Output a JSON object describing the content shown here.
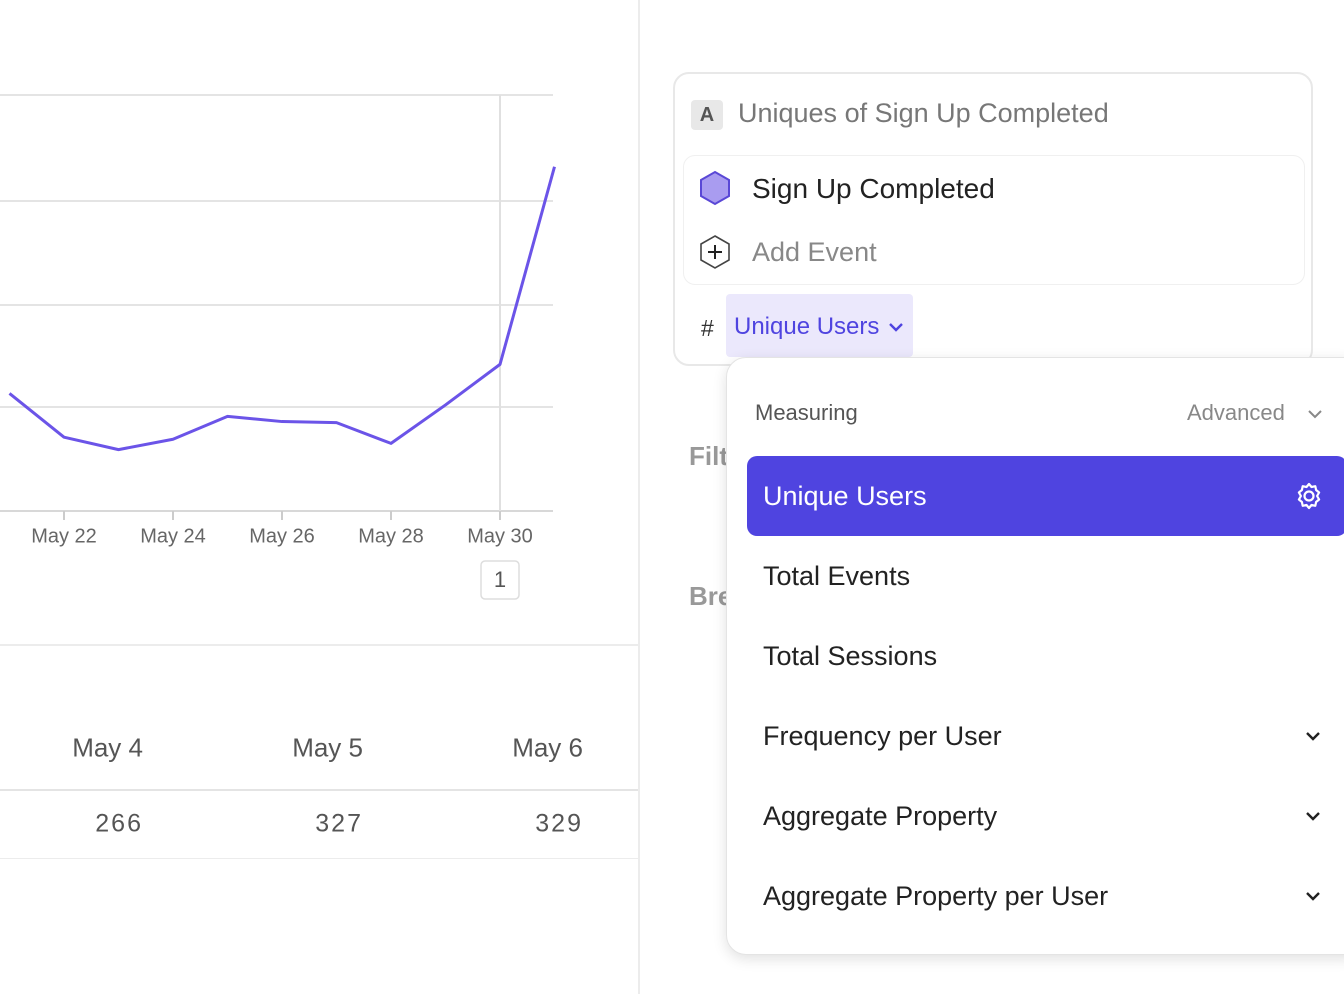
{
  "chart_data": {
    "type": "line",
    "categories": [
      null,
      "May 22",
      null,
      "May 24",
      null,
      "May 26",
      null,
      "May 28",
      null,
      "May 30",
      null
    ],
    "series": [
      {
        "color": "#6b54e8",
        "values": [
          1.13,
          0.71,
          0.59,
          0.69,
          0.91,
          0.86,
          0.85,
          0.65,
          1.02,
          1.41,
          3.31
        ]
      }
    ],
    "ylim": [
      0,
      4
    ],
    "hover_badge": "1"
  },
  "table": {
    "headers": [
      "May 4",
      "May 5",
      "May 6"
    ],
    "rows": [
      [
        "266",
        "327",
        "329"
      ]
    ]
  },
  "query": {
    "badge": "A",
    "title": "Uniques of Sign Up Completed",
    "events": [
      "Sign Up Completed"
    ],
    "add_event": "Add Event",
    "measure_symbol": "#",
    "measure": "Unique Users",
    "hidden_labels": [
      "Filt",
      "Bre"
    ]
  },
  "dropdown": {
    "heading": "Measuring",
    "advanced": "Advanced",
    "options": [
      {
        "label": "Unique Users",
        "selected": true
      },
      {
        "label": "Total Events"
      },
      {
        "label": "Total Sessions"
      },
      {
        "label": "Frequency per User",
        "submenu": true
      },
      {
        "label": "Aggregate Property",
        "submenu": true
      },
      {
        "label": "Aggregate Property per User",
        "submenu": true
      }
    ]
  }
}
